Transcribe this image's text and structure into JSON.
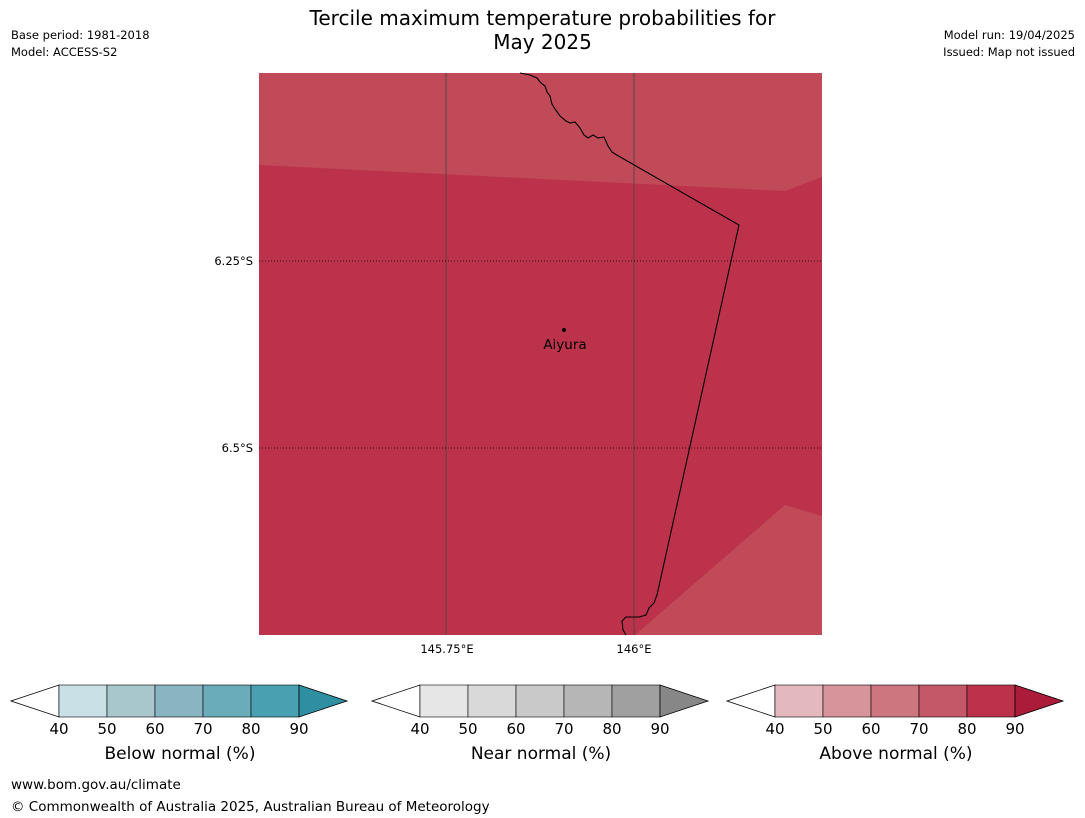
{
  "header": {
    "title_line1": "Tercile maximum temperature probabilities for",
    "title_line2": "May 2025",
    "base_period": "Base period: 1981-2018",
    "model": "Model: ACCESS-S2",
    "model_run": "Model run: 19/04/2025",
    "issued": "Issued: Map not issued"
  },
  "map": {
    "latitude_labels": [
      "6.25°S",
      "6.5°S"
    ],
    "longitude_labels": [
      "145.75°E",
      "146°E"
    ],
    "places": [
      {
        "name": "Aiyura"
      }
    ],
    "colors": {
      "dominant": "#bc324a",
      "light": "#c04a58",
      "border_line": "#000000"
    }
  },
  "legends": [
    {
      "title": "Below normal (%)",
      "ticks": [
        "40",
        "50",
        "60",
        "70",
        "80",
        "90"
      ],
      "colors": [
        "#ffffff",
        "#c9e1e6",
        "#a8c7cd",
        "#89b4c2",
        "#6aacba",
        "#48a0b0",
        "#2e8fa2"
      ]
    },
    {
      "title": "Near normal (%)",
      "ticks": [
        "40",
        "50",
        "60",
        "70",
        "80",
        "90"
      ],
      "colors": [
        "#ffffff",
        "#e6e6e6",
        "#d9d9d9",
        "#c9c9c9",
        "#b6b6b6",
        "#a0a0a0",
        "#878787"
      ]
    },
    {
      "title": "Above normal (%)",
      "ticks": [
        "40",
        "50",
        "60",
        "70",
        "80",
        "90"
      ],
      "colors": [
        "#ffffff",
        "#e3b9be",
        "#d8949b",
        "#ce767f",
        "#c55868",
        "#bc324a",
        "#aa1c3a"
      ]
    }
  ],
  "footer": {
    "url": "www.bom.gov.au/climate",
    "copyright": "© Commonwealth of Australia 2025, Australian Bureau of Meteorology"
  }
}
